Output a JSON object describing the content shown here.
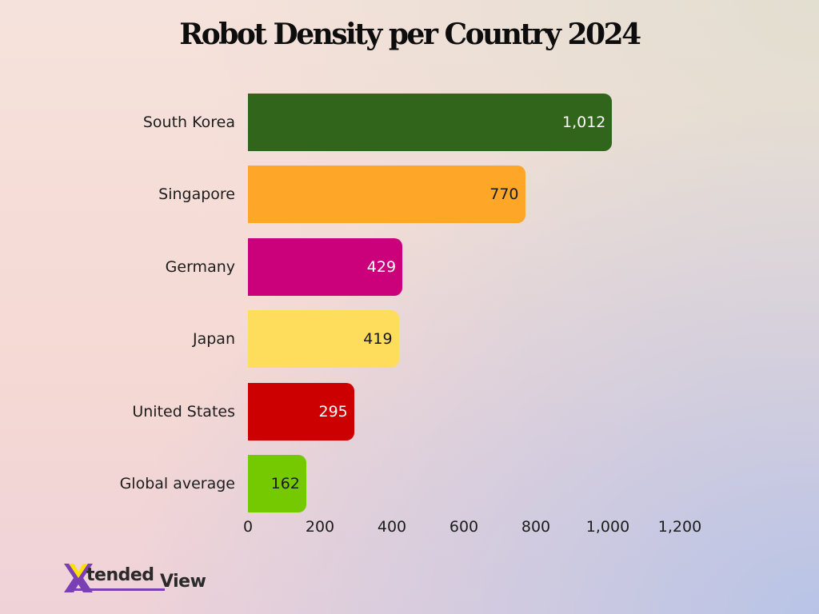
{
  "title": "Robot Density per Country 2024",
  "logo": {
    "part1": "tended",
    "part2": "View",
    "mark": "X"
  },
  "chart_data": {
    "type": "bar",
    "orientation": "horizontal",
    "title": "Robot Density per Country 2024",
    "xlabel": "",
    "ylabel": "",
    "xlim": [
      0,
      1200
    ],
    "grid": false,
    "legend": null,
    "x_ticks": [
      "0",
      "200",
      "400",
      "600",
      "800",
      "1,000",
      "1,200"
    ],
    "x_tick_values": [
      0,
      200,
      400,
      600,
      800,
      1000,
      1200
    ],
    "categories": [
      "South Korea",
      "Singapore",
      "Germany",
      "Japan",
      "United States",
      "Global average"
    ],
    "values": [
      1012,
      770,
      429,
      419,
      295,
      162
    ],
    "value_labels": [
      "1,012",
      "770",
      "429",
      "419",
      "295",
      "162"
    ],
    "colors": [
      "#30651b",
      "#fea628",
      "#cb007b",
      "#fedc5c",
      "#cc0000",
      "#74c900"
    ],
    "label_colors": [
      "#ffffff",
      "#1a1a1a",
      "#ffffff",
      "#1a1a1a",
      "#ffffff",
      "#1a1a1a"
    ]
  }
}
